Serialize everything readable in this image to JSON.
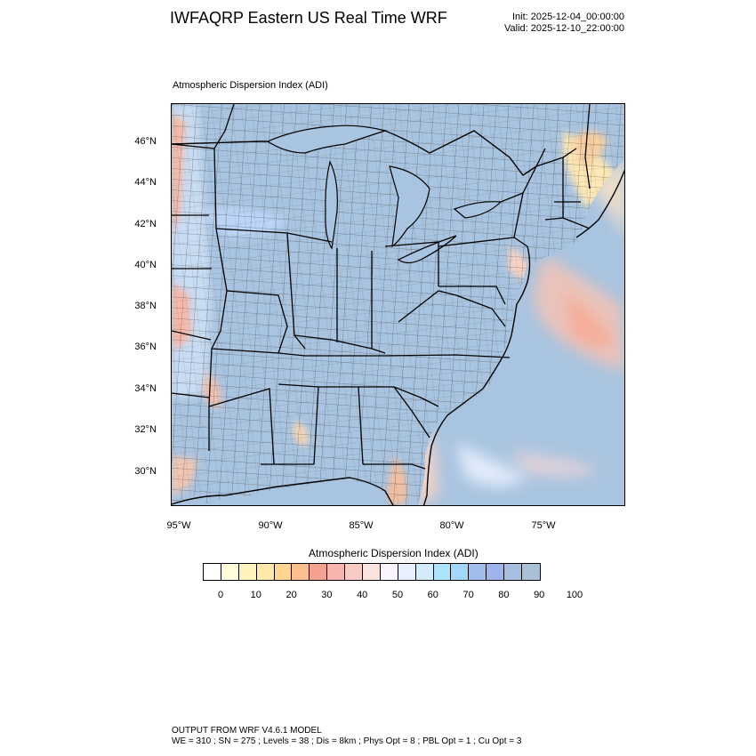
{
  "header": {
    "title": "IWFAQRP Eastern US Real Time WRF",
    "init": "Init: 2025-12-04_00:00:00",
    "valid": "Valid: 2025-12-10_22:00:00"
  },
  "map": {
    "field_label": "Atmospheric Dispersion Index   (ADI)",
    "lat_labels": [
      "46°N",
      "44°N",
      "42°N",
      "40°N",
      "38°N",
      "36°N",
      "34°N",
      "32°N",
      "30°N"
    ],
    "lon_labels": [
      "95°W",
      "90°W",
      "85°W",
      "80°W",
      "75°W"
    ]
  },
  "colorbar": {
    "title": "Atmospheric Dispersion Index  (ADI)",
    "colors": [
      "#ffffff",
      "#fffdd8",
      "#fff3bc",
      "#ffe9a8",
      "#ffd58f",
      "#fbc08d",
      "#f5a190",
      "#f6b5af",
      "#f8ccc6",
      "#fbe3e0",
      "#faf5ff",
      "#e8f0fd",
      "#d2ecfb",
      "#ace5fb",
      "#a3d6f9",
      "#a0bdee",
      "#9fb4ea",
      "#a6bee0",
      "#a8c0d8"
    ],
    "labels": [
      "0",
      "10",
      "20",
      "30",
      "40",
      "50",
      "60",
      "70",
      "80",
      "90",
      "100"
    ]
  },
  "footer": {
    "line1": "OUTPUT FROM WRF V4.6.1 MODEL",
    "line2": "WE = 310 ; SN = 275 ; Levels = 38 ; Dis = 8km ; Phys Opt = 8 ; PBL Opt = 1 ; Cu Opt = 3"
  }
}
